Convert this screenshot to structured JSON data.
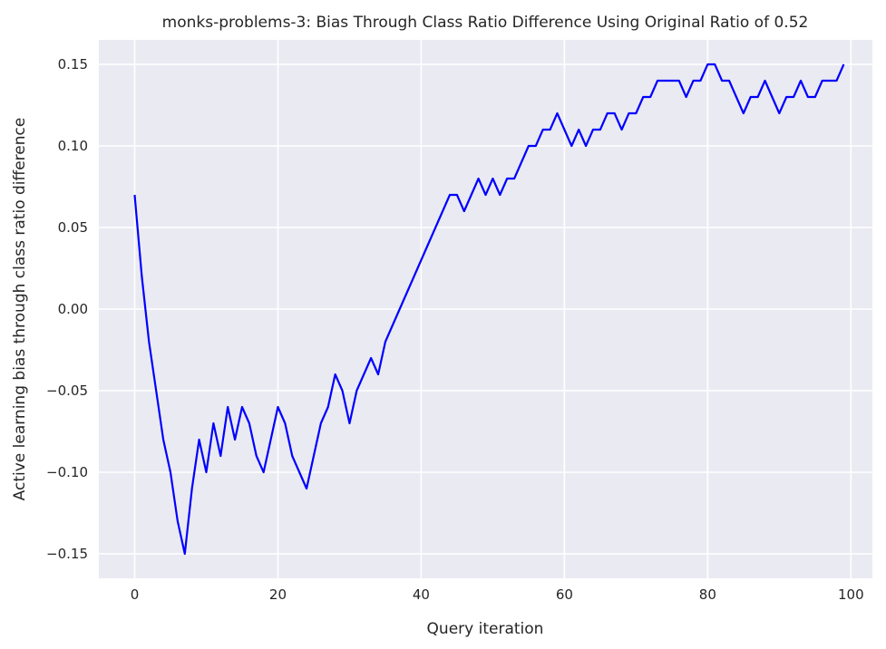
{
  "chart_data": {
    "type": "line",
    "title": "monks-problems-3: Bias Through Class Ratio Difference Using Original Ratio of 0.52",
    "xlabel": "Query iteration",
    "ylabel": "Active learning bias through class ratio difference",
    "xlim": [
      -5,
      103
    ],
    "ylim": [
      -0.165,
      0.165
    ],
    "xticks": [
      0,
      20,
      40,
      60,
      80,
      100
    ],
    "yticks": [
      -0.15,
      -0.1,
      -0.05,
      0.0,
      0.05,
      0.1,
      0.15
    ],
    "xtick_labels": [
      "0",
      "20",
      "40",
      "60",
      "80",
      "100"
    ],
    "ytick_labels": [
      "−0.15",
      "−0.10",
      "−0.05",
      "0.00",
      "0.05",
      "0.10",
      "0.15"
    ],
    "grid": true,
    "colors": {
      "background": "#eaeaf2",
      "grid": "#ffffff",
      "line": "#0000ff"
    },
    "series": [
      {
        "color": "#0000ff",
        "x": [
          0,
          1,
          2,
          3,
          4,
          5,
          6,
          7,
          8,
          9,
          10,
          11,
          12,
          13,
          14,
          15,
          16,
          17,
          18,
          19,
          20,
          21,
          22,
          23,
          24,
          25,
          26,
          27,
          28,
          29,
          30,
          31,
          32,
          33,
          34,
          35,
          36,
          37,
          38,
          39,
          40,
          41,
          42,
          43,
          44,
          45,
          46,
          47,
          48,
          49,
          50,
          51,
          52,
          53,
          54,
          55,
          56,
          57,
          58,
          59,
          60,
          61,
          62,
          63,
          64,
          65,
          66,
          67,
          68,
          69,
          70,
          71,
          72,
          73,
          74,
          75,
          76,
          77,
          78,
          79,
          80,
          81,
          82,
          83,
          84,
          85,
          86,
          87,
          88,
          89,
          90,
          91,
          92,
          93,
          94,
          95,
          96,
          97,
          98,
          99
        ],
        "y": [
          0.07,
          0.02,
          -0.02,
          -0.05,
          -0.08,
          -0.1,
          -0.13,
          -0.15,
          -0.11,
          -0.08,
          -0.1,
          -0.07,
          -0.09,
          -0.06,
          -0.08,
          -0.06,
          -0.07,
          -0.09,
          -0.1,
          -0.08,
          -0.06,
          -0.07,
          -0.09,
          -0.1,
          -0.11,
          -0.09,
          -0.07,
          -0.06,
          -0.04,
          -0.05,
          -0.07,
          -0.05,
          -0.04,
          -0.03,
          -0.04,
          -0.02,
          -0.01,
          0.0,
          0.01,
          0.02,
          0.03,
          0.04,
          0.05,
          0.06,
          0.07,
          0.07,
          0.06,
          0.07,
          0.08,
          0.07,
          0.08,
          0.07,
          0.08,
          0.08,
          0.09,
          0.1,
          0.1,
          0.11,
          0.11,
          0.12,
          0.11,
          0.1,
          0.11,
          0.1,
          0.11,
          0.11,
          0.12,
          0.12,
          0.11,
          0.12,
          0.12,
          0.13,
          0.13,
          0.14,
          0.14,
          0.14,
          0.14,
          0.13,
          0.14,
          0.14,
          0.15,
          0.15,
          0.14,
          0.14,
          0.13,
          0.12,
          0.13,
          0.13,
          0.14,
          0.13,
          0.12,
          0.13,
          0.13,
          0.14,
          0.13,
          0.13,
          0.14,
          0.14,
          0.14,
          0.15
        ]
      }
    ]
  }
}
